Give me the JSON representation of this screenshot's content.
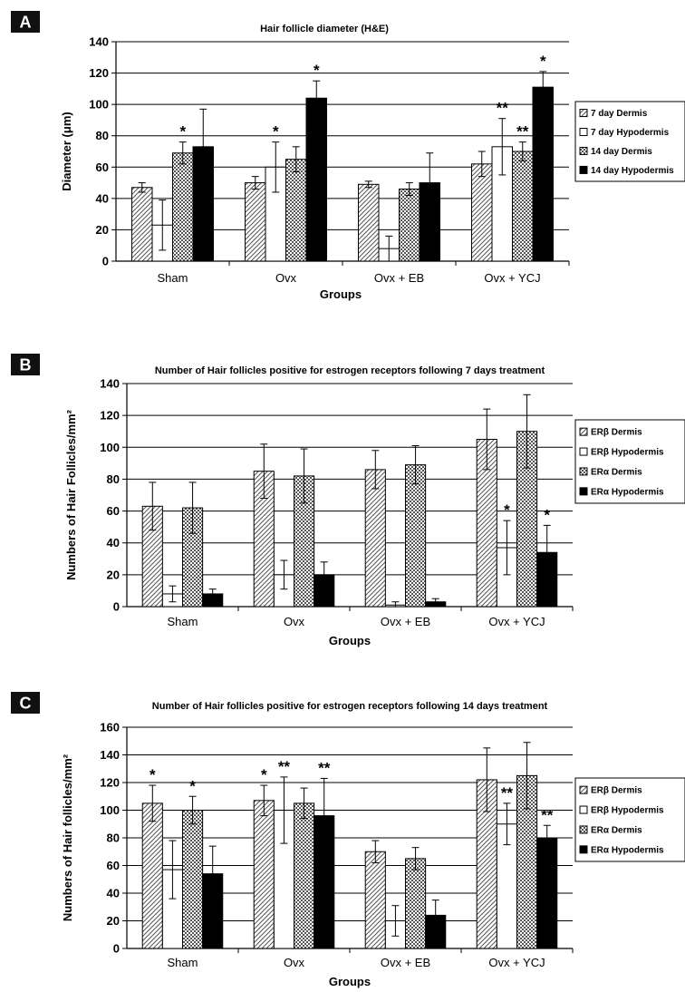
{
  "chart_data": [
    {
      "type": "bar",
      "panel": "A",
      "title": "Hair follicle diameter (H&E)",
      "xlabel": "Groups",
      "ylabel": "Diameter (μm)",
      "ylim": [
        0,
        140
      ],
      "ytick_step": 20,
      "categories": [
        "Sham",
        "Ovx",
        "Ovx + EB",
        "Ovx + YCJ"
      ],
      "series": [
        {
          "name": "7 day Dermis",
          "pattern": "diag",
          "values": [
            47,
            50,
            49,
            62
          ],
          "errors": [
            3,
            4,
            2,
            8
          ],
          "sig": [
            "",
            "",
            "",
            ""
          ]
        },
        {
          "name": "7 day Hypodermis",
          "pattern": "white",
          "values": [
            23,
            60,
            8,
            73
          ],
          "errors": [
            16,
            16,
            8,
            18
          ],
          "sig": [
            "",
            "*",
            "",
            "**"
          ]
        },
        {
          "name": "14 day Dermis",
          "pattern": "check",
          "values": [
            69,
            65,
            46,
            70
          ],
          "errors": [
            7,
            8,
            4,
            6
          ],
          "sig": [
            "*",
            "",
            "",
            "**"
          ]
        },
        {
          "name": "14 day Hypodermis",
          "pattern": "black",
          "values": [
            73,
            104,
            50,
            111
          ],
          "errors": [
            24,
            11,
            19,
            10
          ],
          "sig": [
            "",
            "*",
            "",
            "*"
          ]
        }
      ],
      "legend_position": "right"
    },
    {
      "type": "bar",
      "panel": "B",
      "title": "Number of Hair follicles positive for estrogen receptors following 7 days treatment",
      "xlabel": "Groups",
      "ylabel": "Numbers of Hair Follicles/mm²",
      "ylim": [
        0,
        140
      ],
      "ytick_step": 20,
      "categories": [
        "Sham",
        "Ovx",
        "Ovx + EB",
        "Ovx + YCJ"
      ],
      "series": [
        {
          "name": "ERβ Dermis",
          "pattern": "diag",
          "values": [
            63,
            85,
            86,
            105
          ],
          "errors": [
            15,
            17,
            12,
            19
          ],
          "sig": [
            "",
            "",
            "",
            ""
          ]
        },
        {
          "name": "ERβ Hypodermis",
          "pattern": "white",
          "values": [
            8,
            20,
            1,
            37
          ],
          "errors": [
            5,
            9,
            2,
            17
          ],
          "sig": [
            "",
            "",
            "",
            "*"
          ]
        },
        {
          "name": "ERα Dermis",
          "pattern": "check",
          "values": [
            62,
            82,
            89,
            110
          ],
          "errors": [
            16,
            17,
            12,
            23
          ],
          "sig": [
            "",
            "",
            "",
            ""
          ]
        },
        {
          "name": "ERα Hypodermis",
          "pattern": "black",
          "values": [
            8,
            20,
            3,
            34
          ],
          "errors": [
            3,
            8,
            2,
            17
          ],
          "sig": [
            "",
            "",
            "",
            "*"
          ]
        }
      ],
      "legend_position": "right"
    },
    {
      "type": "bar",
      "panel": "C",
      "title": "Number of Hair follicles positive for estrogen receptors following 14 days treatment",
      "xlabel": "Groups",
      "ylabel": "Numbers of Hair follicles/mm²",
      "ylim": [
        0,
        160
      ],
      "ytick_step": 20,
      "categories": [
        "Sham",
        "Ovx",
        "Ovx + EB",
        "Ovx + YCJ"
      ],
      "series": [
        {
          "name": "ERβ Dermis",
          "pattern": "diag",
          "values": [
            105,
            107,
            70,
            122
          ],
          "errors": [
            13,
            11,
            8,
            23
          ],
          "sig": [
            "*",
            "*",
            "",
            ""
          ]
        },
        {
          "name": "ERβ Hypodermis",
          "pattern": "white",
          "values": [
            57,
            100,
            20,
            90
          ],
          "errors": [
            21,
            24,
            11,
            15
          ],
          "sig": [
            "",
            "**",
            "",
            "**"
          ]
        },
        {
          "name": "ERα Dermis",
          "pattern": "check",
          "values": [
            100,
            105,
            65,
            125
          ],
          "errors": [
            10,
            11,
            8,
            24
          ],
          "sig": [
            "*",
            "",
            "",
            ""
          ]
        },
        {
          "name": "ERα Hypodermis",
          "pattern": "black",
          "values": [
            54,
            96,
            24,
            80
          ],
          "errors": [
            20,
            27,
            11,
            9
          ],
          "sig": [
            "",
            "**",
            "",
            "**"
          ]
        }
      ],
      "legend_position": "right"
    }
  ]
}
